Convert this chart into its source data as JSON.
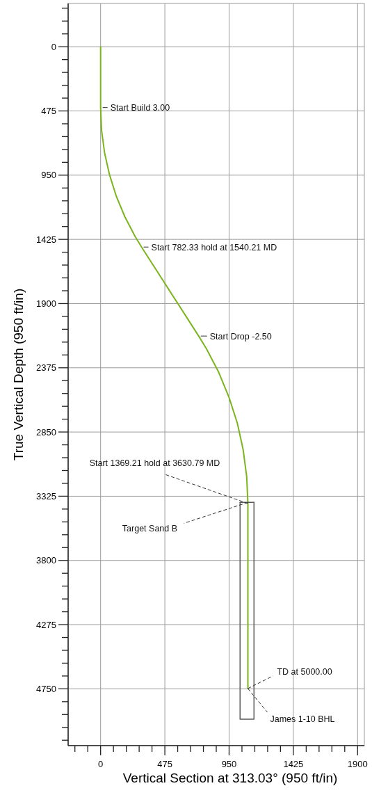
{
  "chart_data": {
    "type": "line",
    "xlabel": "Vertical Section at 313.03° (950 ft/in)",
    "ylabel": "True Vertical Depth (950 ft/in)",
    "xlim": [
      -240,
      1950
    ],
    "ylim": [
      5170,
      -320
    ],
    "xticks": [
      {
        "value": -190,
        "label": null
      },
      {
        "value": -95,
        "label": null
      },
      0,
      {
        "value": 95,
        "label": null
      },
      {
        "value": 190,
        "label": null
      },
      {
        "value": 285,
        "label": null
      },
      {
        "value": 380,
        "label": null
      },
      475,
      {
        "value": 570,
        "label": null
      },
      {
        "value": 665,
        "label": null
      },
      {
        "value": 760,
        "label": null
      },
      {
        "value": 855,
        "label": null
      },
      950,
      {
        "value": 1045,
        "label": null
      },
      {
        "value": 1140,
        "label": null
      },
      {
        "value": 1235,
        "label": null
      },
      {
        "value": 1330,
        "label": null
      },
      1425,
      {
        "value": 1520,
        "label": null
      },
      {
        "value": 1615,
        "label": null
      },
      {
        "value": 1710,
        "label": null
      },
      {
        "value": 1805,
        "label": null
      },
      1900
    ],
    "yticks": [
      {
        "value": -285,
        "label": null
      },
      {
        "value": -190,
        "label": null
      },
      {
        "value": -95,
        "label": null
      },
      0,
      {
        "value": 95,
        "label": null
      },
      {
        "value": 190,
        "label": null
      },
      {
        "value": 285,
        "label": null
      },
      {
        "value": 380,
        "label": null
      },
      475,
      {
        "value": 570,
        "label": null
      },
      {
        "value": 665,
        "label": null
      },
      {
        "value": 760,
        "label": null
      },
      {
        "value": 855,
        "label": null
      },
      950,
      {
        "value": 1045,
        "label": null
      },
      {
        "value": 1140,
        "label": null
      },
      {
        "value": 1235,
        "label": null
      },
      {
        "value": 1330,
        "label": null
      },
      1425,
      {
        "value": 1520,
        "label": null
      },
      {
        "value": 1615,
        "label": null
      },
      {
        "value": 1710,
        "label": null
      },
      {
        "value": 1805,
        "label": null
      },
      1900,
      {
        "value": 1995,
        "label": null
      },
      {
        "value": 2090,
        "label": null
      },
      {
        "value": 2185,
        "label": null
      },
      {
        "value": 2280,
        "label": null
      },
      2375,
      {
        "value": 2470,
        "label": null
      },
      {
        "value": 2565,
        "label": null
      },
      {
        "value": 2660,
        "label": null
      },
      {
        "value": 2755,
        "label": null
      },
      2850,
      {
        "value": 2945,
        "label": null
      },
      {
        "value": 3040,
        "label": null
      },
      {
        "value": 3135,
        "label": null
      },
      {
        "value": 3230,
        "label": null
      },
      3325,
      {
        "value": 3420,
        "label": null
      },
      {
        "value": 3515,
        "label": null
      },
      {
        "value": 3610,
        "label": null
      },
      {
        "value": 3705,
        "label": null
      },
      3800,
      {
        "value": 3895,
        "label": null
      },
      {
        "value": 3990,
        "label": null
      },
      {
        "value": 4085,
        "label": null
      },
      {
        "value": 4180,
        "label": null
      },
      4275,
      {
        "value": 4370,
        "label": null
      },
      {
        "value": 4465,
        "label": null
      },
      {
        "value": 4560,
        "label": null
      },
      {
        "value": 4655,
        "label": null
      },
      4750,
      {
        "value": 4845,
        "label": null
      },
      {
        "value": 4940,
        "label": null
      },
      {
        "value": 5035,
        "label": null
      },
      {
        "value": 5130,
        "label": null
      }
    ],
    "grid": true,
    "series": [
      {
        "color": "#7ab51d",
        "x": [
          0,
          0,
          7,
          29,
          65,
          115,
          179,
          256,
          303,
          725,
          782,
          874,
          950,
          1011,
          1054,
          1080,
          1089,
          1089
        ],
        "values": [
          0,
          450,
          617,
          782,
          944,
          1103,
          1257,
          1405,
          1482,
          2140,
          2233,
          2410,
          2595,
          2785,
          2981,
          3179,
          3379,
          4748
        ]
      },
      {
        "color": "#5a5a5a",
        "x": [
          1031,
          1031,
          1134,
          1134
        ],
        "values": [
          3371,
          4974,
          4974,
          3371
        ]
      },
      {
        "color": "#5a5a5a",
        "x": [
          1031,
          1134
        ],
        "values": [
          3371,
          3371
        ]
      }
    ],
    "annotations": [
      {
        "text": "Start Build 3.00",
        "x": 0,
        "y": 450
      },
      {
        "text": "Start 782.33 hold at 1540.21 MD",
        "x": 302.7,
        "y": 1481.9
      },
      {
        "text": "Start Drop -2.50",
        "x": 725.4,
        "y": 2140.2
      },
      {
        "text": "Start 1369.21 hold at 3630.79 MD",
        "x": 1088.7,
        "y": 3378.5
      },
      {
        "text": "Target Sand B",
        "x": 1088.7,
        "y": 3371
      },
      {
        "text": "TD at 5000.00",
        "x": 1088.7,
        "y": 4747.7
      },
      {
        "text": "James 1-10 BHL",
        "x": 1088.7,
        "y": 4747.7
      }
    ]
  }
}
